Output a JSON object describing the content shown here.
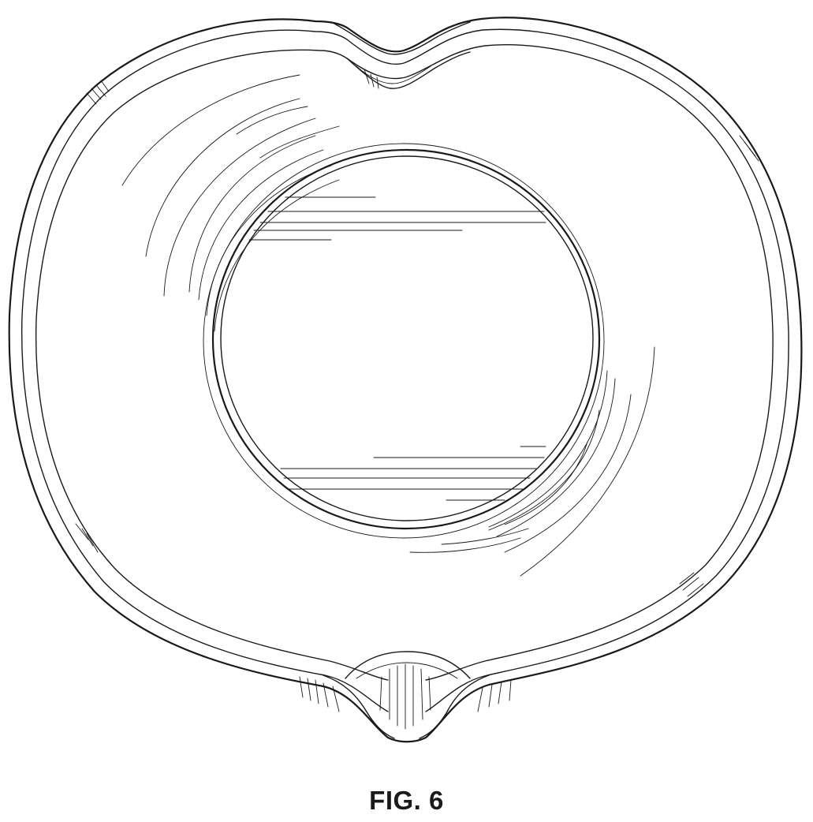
{
  "figure": {
    "label": "FIG. 6"
  },
  "colors": {
    "ink": "#1a1a1a",
    "paper": "#ffffff"
  }
}
